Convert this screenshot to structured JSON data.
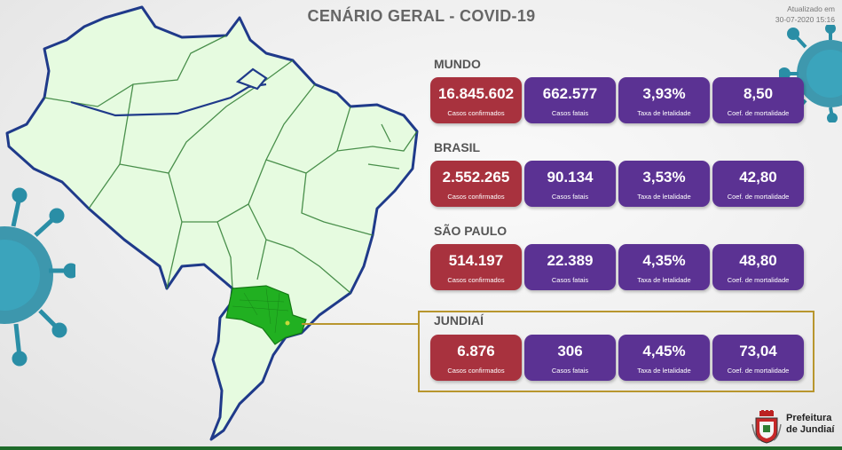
{
  "header": {
    "title": "CENÁRIO GERAL - COVID-19",
    "updated_label": "Atualizado em",
    "updated_value": "30-07-2020 15:16"
  },
  "sections": [
    {
      "name": "MUNDO",
      "cards": [
        {
          "value": "16.845.602",
          "label": "Casos confirmados"
        },
        {
          "value": "662.577",
          "label": "Casos fatais"
        },
        {
          "value": "3,93%",
          "label": "Taxa de letalidade"
        },
        {
          "value": "8,50",
          "label": "Coef. de mortalidade"
        }
      ]
    },
    {
      "name": "BRASIL",
      "cards": [
        {
          "value": "2.552.265",
          "label": "Casos confirmados"
        },
        {
          "value": "90.134",
          "label": "Casos fatais"
        },
        {
          "value": "3,53%",
          "label": "Taxa de letalidade"
        },
        {
          "value": "42,80",
          "label": "Coef. de mortalidade"
        }
      ]
    },
    {
      "name": "SÃO PAULO",
      "cards": [
        {
          "value": "514.197",
          "label": "Casos confirmados"
        },
        {
          "value": "22.389",
          "label": "Casos fatais"
        },
        {
          "value": "4,35%",
          "label": "Taxa de letalidade"
        },
        {
          "value": "48,80",
          "label": "Coef. de mortalidade"
        }
      ]
    },
    {
      "name": "JUNDIAÍ",
      "cards": [
        {
          "value": "6.876",
          "label": "Casos confirmados"
        },
        {
          "value": "306",
          "label": "Casos fatais"
        },
        {
          "value": "4,45%",
          "label": "Taxa de letalidade"
        },
        {
          "value": "73,04",
          "label": "Coef. de mortalidade"
        }
      ]
    }
  ],
  "logo": {
    "line1": "Prefeitura",
    "line2": "de Jundiaí",
    "icon": "coat-of-arms-icon"
  },
  "colors": {
    "confirmed": "#a8323e",
    "metric": "#5b3293",
    "highlight": "#b8962e",
    "map_fill": "#e6fbe0",
    "map_border": "#1f3a8a",
    "state_highlight": "#21b021"
  }
}
